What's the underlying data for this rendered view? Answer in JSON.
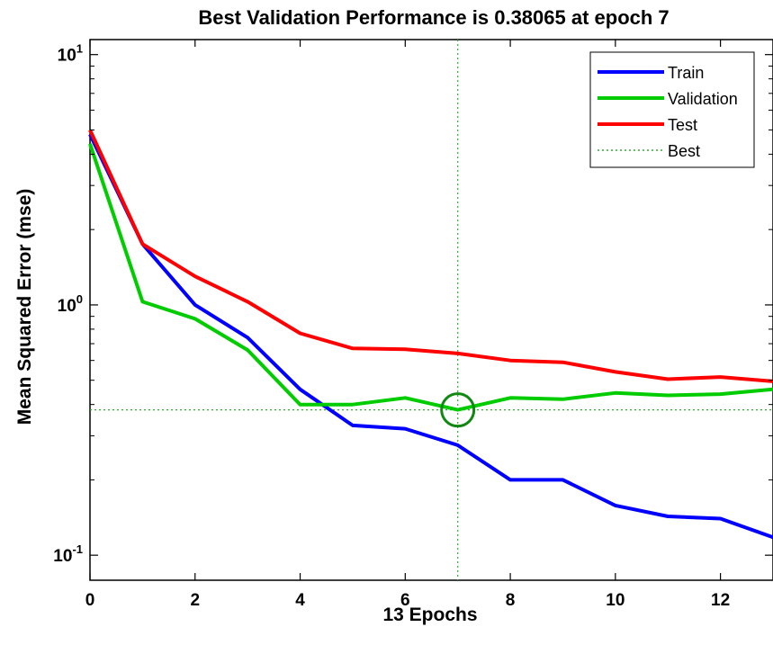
{
  "chart_data": {
    "type": "line",
    "title": "Best Validation Performance is 0.38065 at epoch 7",
    "xlabel": "13 Epochs",
    "ylabel": "Mean Squared Error  (mse)",
    "xlim": [
      0,
      13
    ],
    "ylim": [
      0.1,
      10
    ],
    "yscale": "log",
    "xticks": [
      0,
      2,
      4,
      6,
      8,
      10,
      12
    ],
    "xtick_labels": [
      "0",
      "2",
      "4",
      "6",
      "8",
      "10",
      "12"
    ],
    "yticks": [
      {
        "value": 10,
        "base": "10",
        "exp": "1"
      },
      {
        "value": 1,
        "base": "10",
        "exp": "0"
      },
      {
        "value": 0.1,
        "base": "10",
        "exp": "-1"
      }
    ],
    "grid": false,
    "legend_position": "top-right",
    "x": [
      0,
      1,
      2,
      3,
      4,
      5,
      6,
      7,
      8,
      9,
      10,
      11,
      12,
      13
    ],
    "series": [
      {
        "name": "Train",
        "color": "#0000ff",
        "values": [
          4.8,
          1.75,
          1.0,
          0.74,
          0.46,
          0.33,
          0.32,
          0.275,
          0.2,
          0.2,
          0.158,
          0.143,
          0.14,
          0.118
        ]
      },
      {
        "name": "Validation",
        "color": "#00cc00",
        "values": [
          4.4,
          1.03,
          0.88,
          0.66,
          0.4,
          0.4,
          0.425,
          0.38065,
          0.425,
          0.42,
          0.445,
          0.435,
          0.44,
          0.46
        ]
      },
      {
        "name": "Test",
        "color": "#ff0000",
        "values": [
          5.0,
          1.75,
          1.3,
          1.03,
          0.77,
          0.67,
          0.665,
          0.64,
          0.6,
          0.59,
          0.54,
          0.505,
          0.515,
          0.495
        ]
      }
    ],
    "best": {
      "name": "Best",
      "epoch": 7,
      "value": 0.38065,
      "color": "#33aa33"
    }
  }
}
